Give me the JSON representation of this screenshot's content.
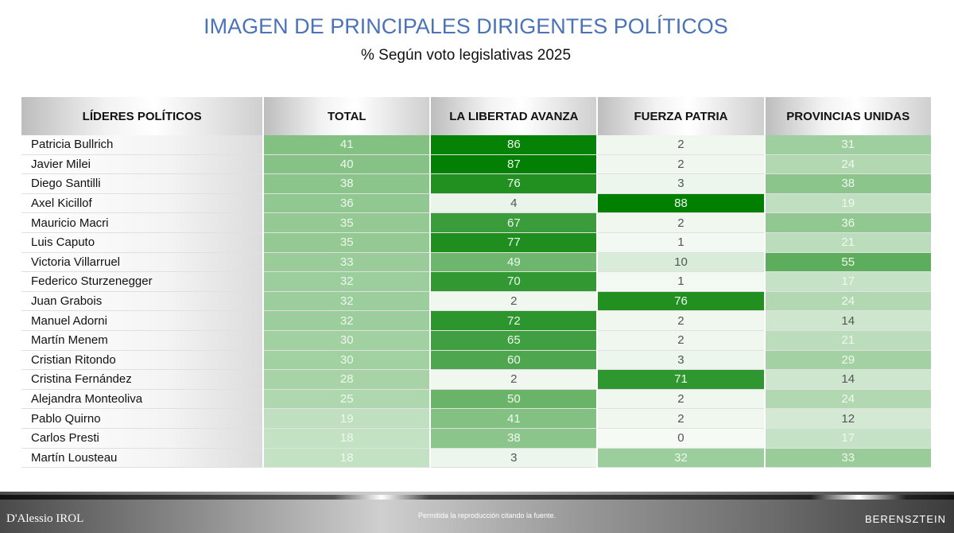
{
  "title": "IMAGEN DE PRINCIPALES DIRIGENTES POLÍTICOS",
  "subtitle": "% Según voto legislativas 2025",
  "colors": {
    "title": "#4a73b8",
    "high": "#007f00",
    "low": "#f5faf5"
  },
  "table": {
    "headers": [
      "LÍDERES POLÍTICOS",
      "TOTAL",
      "LA LIBERTAD AVANZA",
      "FUERZA PATRIA",
      "PROVINCIAS UNIDAS"
    ],
    "rows": [
      {
        "name": "Patricia Bullrich",
        "values": [
          41,
          86,
          2,
          31
        ]
      },
      {
        "name": "Javier Milei",
        "values": [
          40,
          87,
          2,
          24
        ]
      },
      {
        "name": "Diego Santilli",
        "values": [
          38,
          76,
          3,
          38
        ]
      },
      {
        "name": "Axel Kicillof",
        "values": [
          36,
          4,
          88,
          19
        ]
      },
      {
        "name": "Mauricio Macri",
        "values": [
          35,
          67,
          2,
          36
        ]
      },
      {
        "name": "Luis Caputo",
        "values": [
          35,
          77,
          1,
          21
        ]
      },
      {
        "name": "Victoria Villarruel",
        "values": [
          33,
          49,
          10,
          55
        ]
      },
      {
        "name": "Federico Sturzenegger",
        "values": [
          32,
          70,
          1,
          17
        ]
      },
      {
        "name": "Juan Grabois",
        "values": [
          32,
          2,
          76,
          24
        ]
      },
      {
        "name": "Manuel Adorni",
        "values": [
          32,
          72,
          2,
          14
        ]
      },
      {
        "name": "Martín Menem",
        "values": [
          30,
          65,
          2,
          21
        ]
      },
      {
        "name": "Cristian Ritondo",
        "values": [
          30,
          60,
          3,
          29
        ]
      },
      {
        "name": "Cristina Fernández",
        "values": [
          28,
          2,
          71,
          14
        ]
      },
      {
        "name": "Alejandra Monteoliva",
        "values": [
          25,
          50,
          2,
          24
        ]
      },
      {
        "name": "Pablo Quirno",
        "values": [
          19,
          41,
          2,
          12
        ]
      },
      {
        "name": "Carlos Presti",
        "values": [
          18,
          38,
          0,
          17
        ]
      },
      {
        "name": "Martín Lousteau",
        "values": [
          18,
          3,
          32,
          33
        ]
      }
    ]
  },
  "footer": {
    "note": "Permitida la reproducción citando la fuente.",
    "logo_left": "D'Alessio IROL",
    "logo_right": "BERENSZTEIN"
  }
}
